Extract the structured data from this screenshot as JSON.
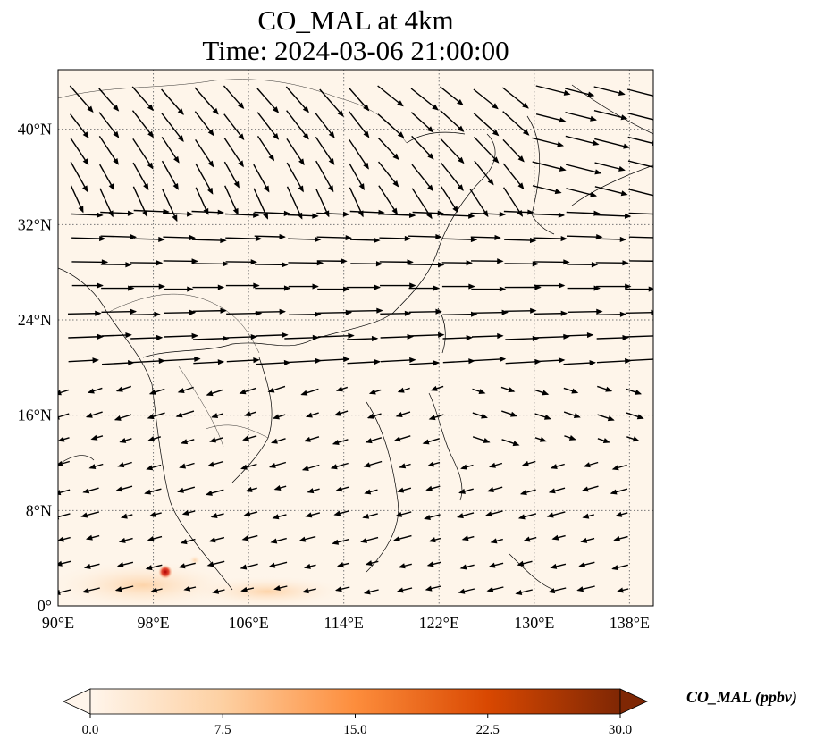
{
  "title_line1": "CO_MAL at 4km",
  "title_line2": "Time: 2024-03-06 21:00:00",
  "map": {
    "lon_range": [
      90,
      140
    ],
    "lat_range": [
      0,
      45
    ],
    "lon_ticks": [
      "90°E",
      "98°E",
      "106°E",
      "114°E",
      "122°E",
      "130°E",
      "138°E"
    ],
    "lat_ticks": [
      "0°",
      "8°N",
      "16°N",
      "24°N",
      "32°N",
      "40°N"
    ],
    "background_color": "#fef5ea",
    "gridlines": "dotted",
    "vector_color": "#000000"
  },
  "colorbar": {
    "label": "CO_MAL (ppbv)",
    "min": 0.0,
    "max": 30.0,
    "ticks": [
      "0.0",
      "7.5",
      "15.0",
      "22.5",
      "30.0"
    ],
    "colormap": [
      "#fff5eb",
      "#fdd0a2",
      "#fd8d3c",
      "#d94801",
      "#7f2704"
    ],
    "extend": "both"
  }
}
